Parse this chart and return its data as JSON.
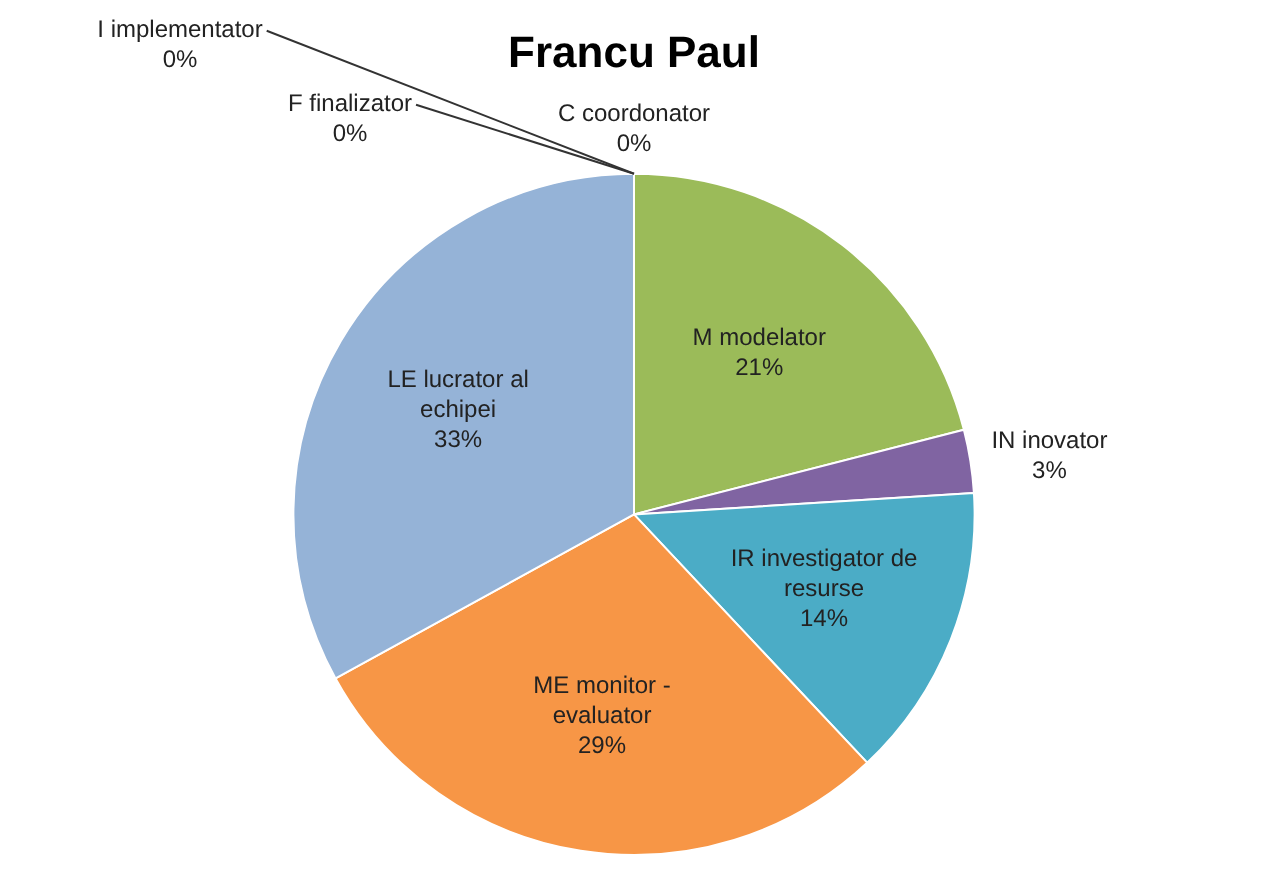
{
  "chart_data": {
    "type": "pie",
    "title": "Francu Paul",
    "categories": [
      "M modelator",
      "IN inovator",
      "IR investigator de resurse",
      "ME monitor - evaluator",
      "LE lucrator al echipei",
      "C coordonator",
      "F finalizator",
      "I implementator"
    ],
    "values": [
      21,
      3,
      14,
      29,
      33,
      0,
      0,
      0
    ],
    "value_labels": [
      "21%",
      "3%",
      "14%",
      "29%",
      "33%",
      "0%",
      "0%",
      "0%"
    ],
    "colors": [
      "#9bbb59",
      "#8064a2",
      "#4bacc6",
      "#f79646",
      "#95b3d7",
      "#2c4d75",
      "#c0504d",
      "#4f81bd"
    ],
    "legend": false
  }
}
